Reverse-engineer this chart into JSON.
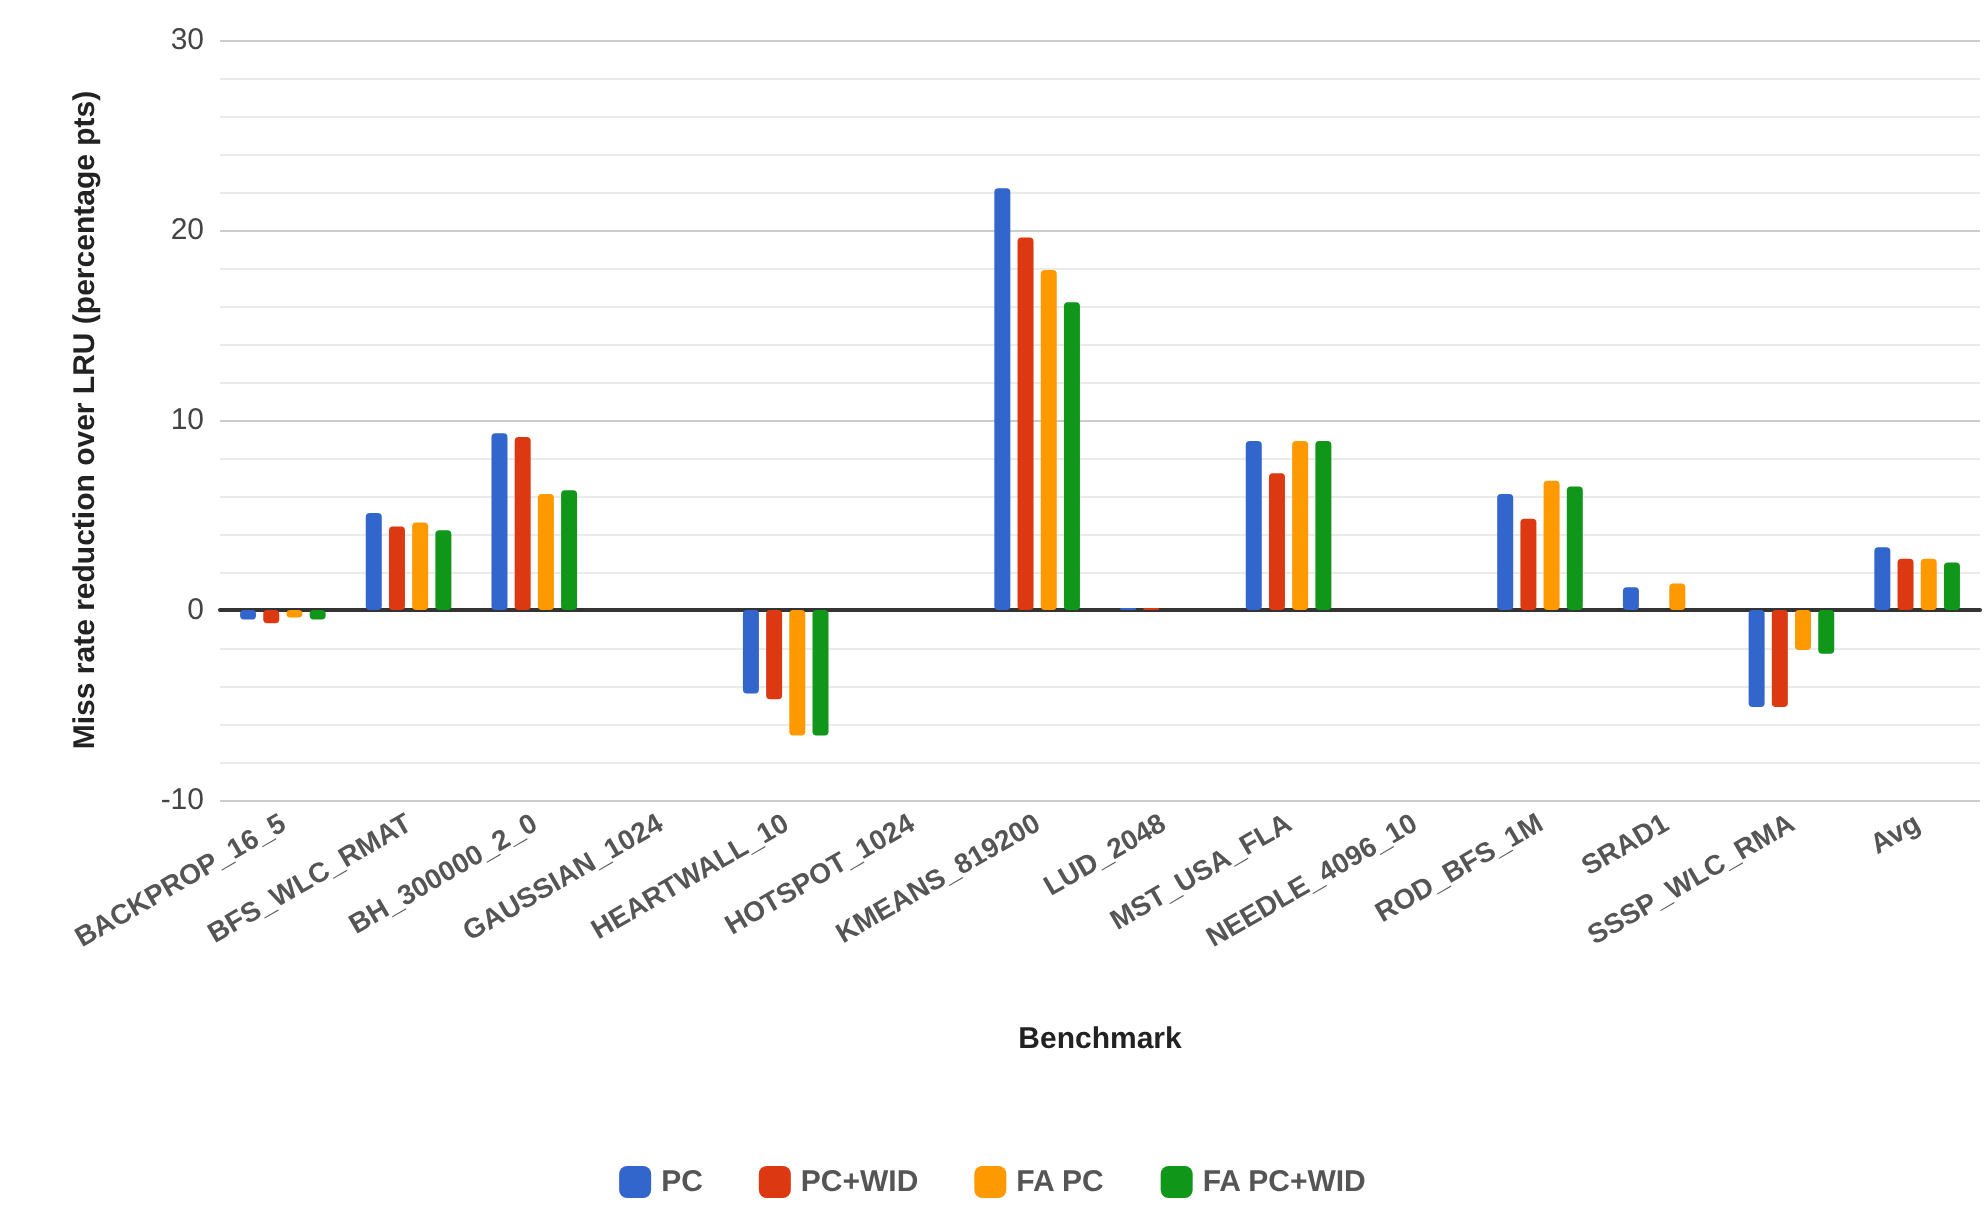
{
  "chart_data": {
    "type": "bar",
    "xlabel": "Benchmark",
    "ylabel": "Miss rate reduction over LRU (percentage pts)",
    "categories": [
      "BACKPROP_16_5",
      "BFS_WLC_RMAT",
      "BH_300000_2_0",
      "GAUSSIAN_1024",
      "HEARTWALL_10",
      "HOTSPOT_1024",
      "KMEANS_819200",
      "LUD_2048",
      "MST_USA_FLA",
      "NEEDLE_4096_10",
      "ROD_BFS_1M",
      "SRAD1",
      "SSSP_WLC_RMA",
      "Avg"
    ],
    "series": [
      {
        "name": "PC",
        "color": "#3366cc",
        "values": [
          -0.5,
          5.1,
          9.3,
          0,
          -4.4,
          0,
          22.2,
          0.1,
          8.9,
          0,
          6.1,
          1.2,
          -5.1,
          3.3
        ]
      },
      {
        "name": "PC+WID",
        "color": "#dc3912",
        "values": [
          -0.7,
          4.4,
          9.1,
          0,
          -4.7,
          0,
          19.6,
          0.1,
          7.2,
          0,
          4.8,
          0,
          -5.1,
          2.7
        ]
      },
      {
        "name": "FA PC",
        "color": "#ff9900",
        "values": [
          -0.4,
          4.6,
          6.1,
          0,
          -6.6,
          0,
          17.9,
          0,
          8.9,
          0,
          6.8,
          1.4,
          -2.1,
          2.7
        ]
      },
      {
        "name": "FA PC+WID",
        "color": "#109618",
        "values": [
          -0.5,
          4.2,
          6.3,
          0,
          -6.6,
          0,
          16.2,
          0,
          8.9,
          0,
          6.5,
          0,
          -2.3,
          2.5
        ]
      }
    ],
    "ylim": [
      -10,
      30
    ],
    "yticks": [
      -10,
      0,
      10,
      20,
      30
    ],
    "grid": "y",
    "legend": "bottom"
  }
}
